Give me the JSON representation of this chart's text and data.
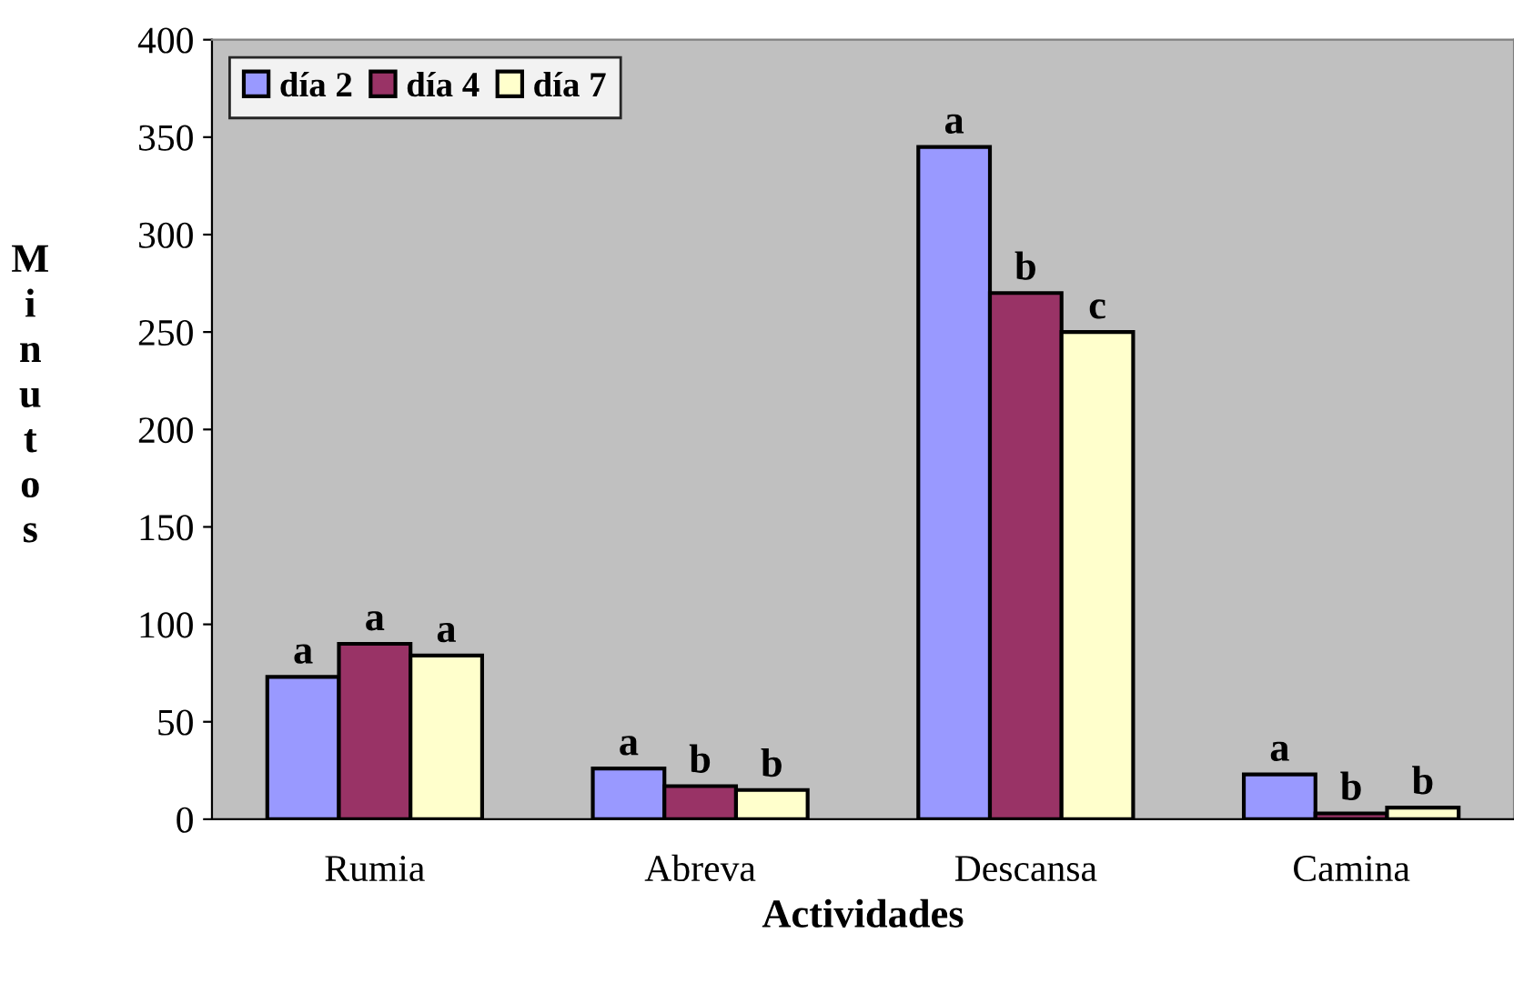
{
  "chart_data": {
    "type": "bar",
    "xlabel": "Actividades",
    "ylabel": "Minutos",
    "categories": [
      "Rumia",
      "Abreva",
      "Descansa",
      "Camina"
    ],
    "series": [
      {
        "name": "día 2",
        "color": "#9999ff",
        "values": [
          73,
          26,
          345,
          23
        ],
        "value_labels": [
          "a",
          "a",
          "a",
          "a"
        ]
      },
      {
        "name": "día 4",
        "color": "#993366",
        "values": [
          90,
          17,
          270,
          3
        ],
        "value_labels": [
          "a",
          "b",
          "b",
          "b"
        ]
      },
      {
        "name": "día 7",
        "color": "#ffffcc",
        "values": [
          84,
          15,
          250,
          6
        ],
        "value_labels": [
          "a",
          "b",
          "c",
          "b"
        ]
      }
    ],
    "ylim": [
      0,
      400
    ],
    "yticks": [
      0,
      50,
      100,
      150,
      200,
      250,
      300,
      350,
      400
    ],
    "grid": false,
    "legend": "top left"
  }
}
